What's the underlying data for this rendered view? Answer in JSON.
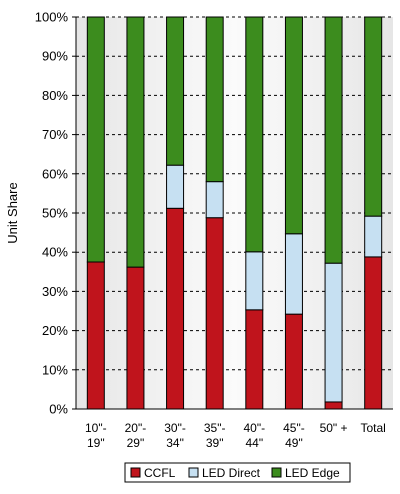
{
  "chart_data": {
    "type": "bar",
    "stacked": true,
    "ylabel": "Unit Share",
    "ylim": [
      0,
      100
    ],
    "yticks": [
      "0%",
      "10%",
      "20%",
      "30%",
      "40%",
      "50%",
      "60%",
      "70%",
      "80%",
      "90%",
      "100%"
    ],
    "grid": true,
    "legend_position": "bottom",
    "categories": [
      [
        "10\"-",
        "19\""
      ],
      [
        "20\"-",
        "29\""
      ],
      [
        "30\"-",
        "34\""
      ],
      [
        "35\"-",
        "39\""
      ],
      [
        "40\"-",
        "44\""
      ],
      [
        "45\"-",
        "49\""
      ],
      [
        "50\" +"
      ],
      [
        "Total"
      ]
    ],
    "series": [
      {
        "name": "CCFL",
        "color": "#c0141c",
        "values": [
          37.5,
          36.2,
          51.2,
          48.8,
          25.3,
          24.2,
          1.8,
          38.8
        ]
      },
      {
        "name": "LED Direct",
        "color": "#c6e0f2",
        "values": [
          0,
          0,
          11,
          9.2,
          14.8,
          20.5,
          35.4,
          10.4
        ]
      },
      {
        "name": "LED Edge",
        "color": "#3c8c1e",
        "values": [
          62.5,
          63.8,
          37.8,
          42,
          59.9,
          55.3,
          62.8,
          50.8
        ]
      }
    ]
  }
}
